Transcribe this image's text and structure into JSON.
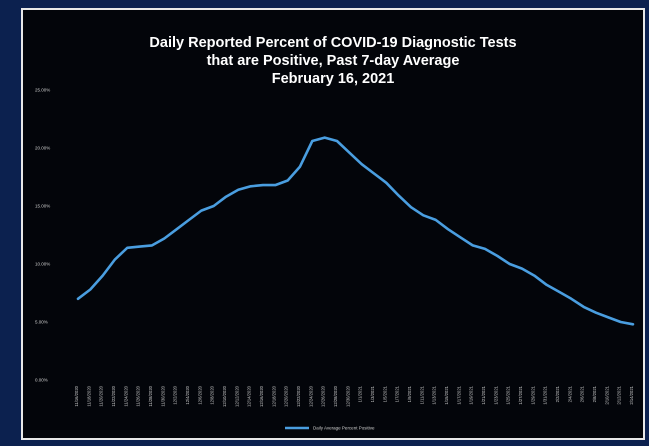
{
  "chart_data": {
    "type": "line",
    "title_lines": [
      "Daily Reported Percent of COVID-19 Diagnostic Tests",
      "that are Positive, Past 7-day Average",
      "February 16, 2021"
    ],
    "xlabel": "",
    "ylabel": "",
    "ylim": [
      0,
      25
    ],
    "y_ticks": [
      {
        "value": 0,
        "label": "0.00%"
      },
      {
        "value": 5,
        "label": "5.00%"
      },
      {
        "value": 10,
        "label": "10.00%"
      },
      {
        "value": 15,
        "label": "15.00%"
      },
      {
        "value": 20,
        "label": "20.00%"
      },
      {
        "value": 25,
        "label": "25.00%"
      }
    ],
    "grid": false,
    "legend_position": "bottom-center",
    "line_color": "#4a9ee0",
    "x": [
      "11/16/2020",
      "11/18/2020",
      "11/20/2020",
      "11/22/2020",
      "11/24/2020",
      "11/26/2020",
      "11/28/2020",
      "11/30/2020",
      "12/2/2020",
      "12/4/2020",
      "12/6/2020",
      "12/8/2020",
      "12/10/2020",
      "12/12/2020",
      "12/14/2020",
      "12/16/2020",
      "12/18/2020",
      "12/20/2020",
      "12/22/2020",
      "12/24/2020",
      "12/26/2020",
      "12/28/2020",
      "12/30/2020",
      "1/1/2021",
      "1/3/2021",
      "1/5/2021",
      "1/7/2021",
      "1/9/2021",
      "1/11/2021",
      "1/13/2021",
      "1/15/2021",
      "1/17/2021",
      "1/19/2021",
      "1/21/2021",
      "1/23/2021",
      "1/25/2021",
      "1/27/2021",
      "1/29/2021",
      "1/31/2021",
      "2/2/2021",
      "2/4/2021",
      "2/6/2021",
      "2/8/2021",
      "2/10/2021",
      "2/12/2021",
      "2/14/2021"
    ],
    "series": [
      {
        "name": "Daily Average Percent Positive",
        "values": [
          7.0,
          7.8,
          9.0,
          10.4,
          11.4,
          11.5,
          11.6,
          12.2,
          13.0,
          13.8,
          14.6,
          15.0,
          15.8,
          16.4,
          16.7,
          16.8,
          16.8,
          17.2,
          18.4,
          20.6,
          20.9,
          20.6,
          19.6,
          18.6,
          17.8,
          17.0,
          15.9,
          14.9,
          14.2,
          13.8,
          13.0,
          12.3,
          11.6,
          11.3,
          10.7,
          10.0,
          9.6,
          9.0,
          8.2,
          7.6,
          7.0,
          6.3,
          5.8,
          5.4,
          5.0,
          4.8
        ]
      }
    ]
  }
}
